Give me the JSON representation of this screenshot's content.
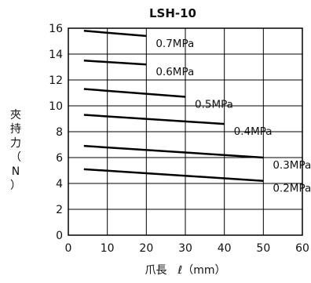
{
  "chart_data": {
    "type": "line",
    "title": "LSH-10",
    "xlabel": "爪長　ℓ（mm）",
    "ylabel": "夾持力（N）",
    "xlim": [
      0,
      60
    ],
    "ylim": [
      0,
      16
    ],
    "x_ticks": [
      0,
      10,
      20,
      30,
      40,
      50,
      60
    ],
    "y_ticks": [
      0,
      2,
      4,
      6,
      8,
      10,
      12,
      14,
      16
    ],
    "grid": true,
    "series": [
      {
        "name": "0.7MPa",
        "x": [
          4,
          20
        ],
        "y": [
          15.8,
          15.4
        ]
      },
      {
        "name": "0.6MPa",
        "x": [
          4,
          20
        ],
        "y": [
          13.5,
          13.2
        ]
      },
      {
        "name": "0.5MPa",
        "x": [
          4,
          30
        ],
        "y": [
          11.3,
          10.7
        ]
      },
      {
        "name": "0.4MPa",
        "x": [
          4,
          40
        ],
        "y": [
          9.3,
          8.6
        ]
      },
      {
        "name": "0.3MPa",
        "x": [
          4,
          50
        ],
        "y": [
          6.9,
          6.0
        ]
      },
      {
        "name": "0.2MPa",
        "x": [
          4,
          50
        ],
        "y": [
          5.1,
          4.2
        ]
      }
    ]
  }
}
